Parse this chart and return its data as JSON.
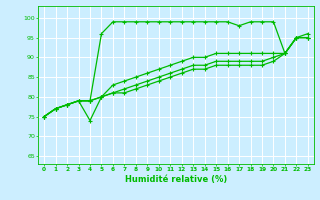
{
  "background_color": "#cceeff",
  "grid_color": "#ffffff",
  "line_color": "#00bb00",
  "marker": "+",
  "markersize": 3.5,
  "linewidth": 0.9,
  "xlabel": "Humidité relative (%)",
  "ylabel_ticks": [
    65,
    70,
    75,
    80,
    85,
    90,
    95,
    100
  ],
  "xlim": [
    -0.5,
    23.5
  ],
  "ylim": [
    63,
    103
  ],
  "xticks": [
    0,
    1,
    2,
    3,
    4,
    5,
    6,
    7,
    8,
    9,
    10,
    11,
    12,
    13,
    14,
    15,
    16,
    17,
    18,
    19,
    20,
    21,
    22,
    23
  ],
  "lines": [
    [
      75,
      77,
      78,
      79,
      79,
      96,
      99,
      99,
      99,
      99,
      99,
      99,
      99,
      99,
      99,
      99,
      99,
      98,
      99,
      99,
      99,
      91,
      95,
      96
    ],
    [
      75,
      77,
      78,
      79,
      74,
      80,
      83,
      84,
      85,
      86,
      87,
      88,
      89,
      90,
      90,
      91,
      91,
      91,
      91,
      91,
      91,
      91,
      95,
      95
    ],
    [
      75,
      77,
      78,
      79,
      79,
      80,
      81,
      82,
      83,
      84,
      85,
      86,
      87,
      88,
      88,
      89,
      89,
      89,
      89,
      89,
      90,
      91,
      95,
      95
    ],
    [
      75,
      77,
      78,
      79,
      79,
      80,
      81,
      81,
      82,
      83,
      84,
      85,
      86,
      87,
      87,
      88,
      88,
      88,
      88,
      88,
      89,
      91,
      95,
      95
    ]
  ]
}
